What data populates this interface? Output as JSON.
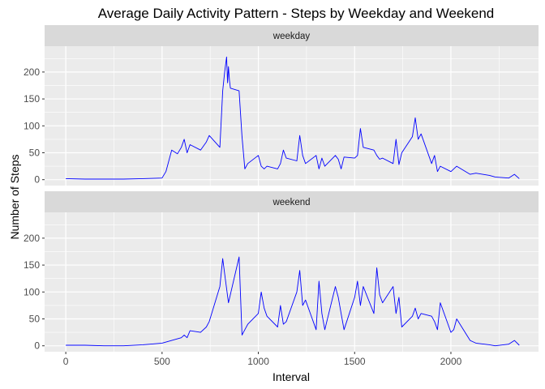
{
  "chart_data": {
    "type": "line",
    "title": "Average Daily Activity Pattern - Steps by Weekday and Weekend",
    "xlabel": "Interval",
    "ylabel": "Number of Steps",
    "xlim": [
      -110,
      2455
    ],
    "ylim": [
      -11,
      248
    ],
    "x_ticks": [
      0,
      500,
      1000,
      1500,
      2000
    ],
    "y_ticks": [
      0,
      50,
      100,
      150,
      200
    ],
    "grid": true,
    "line_color": "#0000ff",
    "panel_color": "#ebebeb",
    "strip_color": "#d9d9d9",
    "facets": [
      {
        "label": "weekday",
        "x": [
          0,
          100,
          200,
          300,
          400,
          500,
          520,
          550,
          580,
          600,
          615,
          630,
          645,
          700,
          730,
          745,
          800,
          815,
          825,
          835,
          840,
          845,
          850,
          855,
          900,
          915,
          930,
          945,
          1000,
          1015,
          1030,
          1045,
          1100,
          1115,
          1130,
          1145,
          1200,
          1215,
          1230,
          1245,
          1300,
          1315,
          1330,
          1345,
          1400,
          1415,
          1430,
          1445,
          1500,
          1515,
          1530,
          1545,
          1600,
          1615,
          1630,
          1645,
          1700,
          1715,
          1730,
          1745,
          1800,
          1815,
          1830,
          1845,
          1900,
          1915,
          1930,
          1945,
          2000,
          2015,
          2030,
          2100,
          2130,
          2200,
          2230,
          2300,
          2330,
          2355
        ],
        "values": [
          2,
          1,
          1,
          1,
          2,
          3,
          15,
          55,
          48,
          60,
          75,
          50,
          65,
          55,
          70,
          82,
          60,
          165,
          200,
          228,
          180,
          210,
          185,
          170,
          165,
          80,
          20,
          30,
          45,
          25,
          20,
          25,
          20,
          30,
          55,
          40,
          35,
          82,
          45,
          30,
          45,
          20,
          40,
          25,
          45,
          38,
          20,
          42,
          40,
          45,
          95,
          60,
          55,
          45,
          38,
          40,
          30,
          75,
          28,
          50,
          80,
          115,
          75,
          85,
          30,
          45,
          15,
          25,
          15,
          20,
          25,
          10,
          12,
          8,
          5,
          3,
          10,
          2
        ]
      },
      {
        "label": "weekend",
        "x": [
          0,
          100,
          200,
          300,
          400,
          500,
          550,
          600,
          615,
          630,
          645,
          700,
          730,
          745,
          800,
          815,
          830,
          845,
          900,
          915,
          930,
          945,
          1000,
          1015,
          1030,
          1045,
          1100,
          1115,
          1130,
          1145,
          1200,
          1215,
          1230,
          1245,
          1300,
          1315,
          1330,
          1345,
          1400,
          1415,
          1430,
          1445,
          1500,
          1515,
          1530,
          1545,
          1600,
          1615,
          1630,
          1645,
          1700,
          1715,
          1730,
          1745,
          1800,
          1815,
          1830,
          1845,
          1900,
          1915,
          1930,
          1945,
          2000,
          2015,
          2030,
          2100,
          2130,
          2200,
          2230,
          2300,
          2330,
          2355
        ],
        "values": [
          1,
          1,
          0,
          0,
          2,
          5,
          10,
          15,
          20,
          15,
          28,
          25,
          35,
          45,
          110,
          162,
          120,
          80,
          165,
          20,
          30,
          40,
          60,
          100,
          70,
          55,
          35,
          75,
          40,
          45,
          100,
          140,
          75,
          85,
          30,
          120,
          60,
          30,
          110,
          90,
          60,
          30,
          90,
          120,
          75,
          110,
          60,
          145,
          95,
          80,
          110,
          60,
          90,
          35,
          55,
          70,
          50,
          60,
          55,
          45,
          30,
          80,
          25,
          30,
          50,
          10,
          5,
          2,
          0,
          3,
          10,
          1
        ]
      }
    ]
  }
}
